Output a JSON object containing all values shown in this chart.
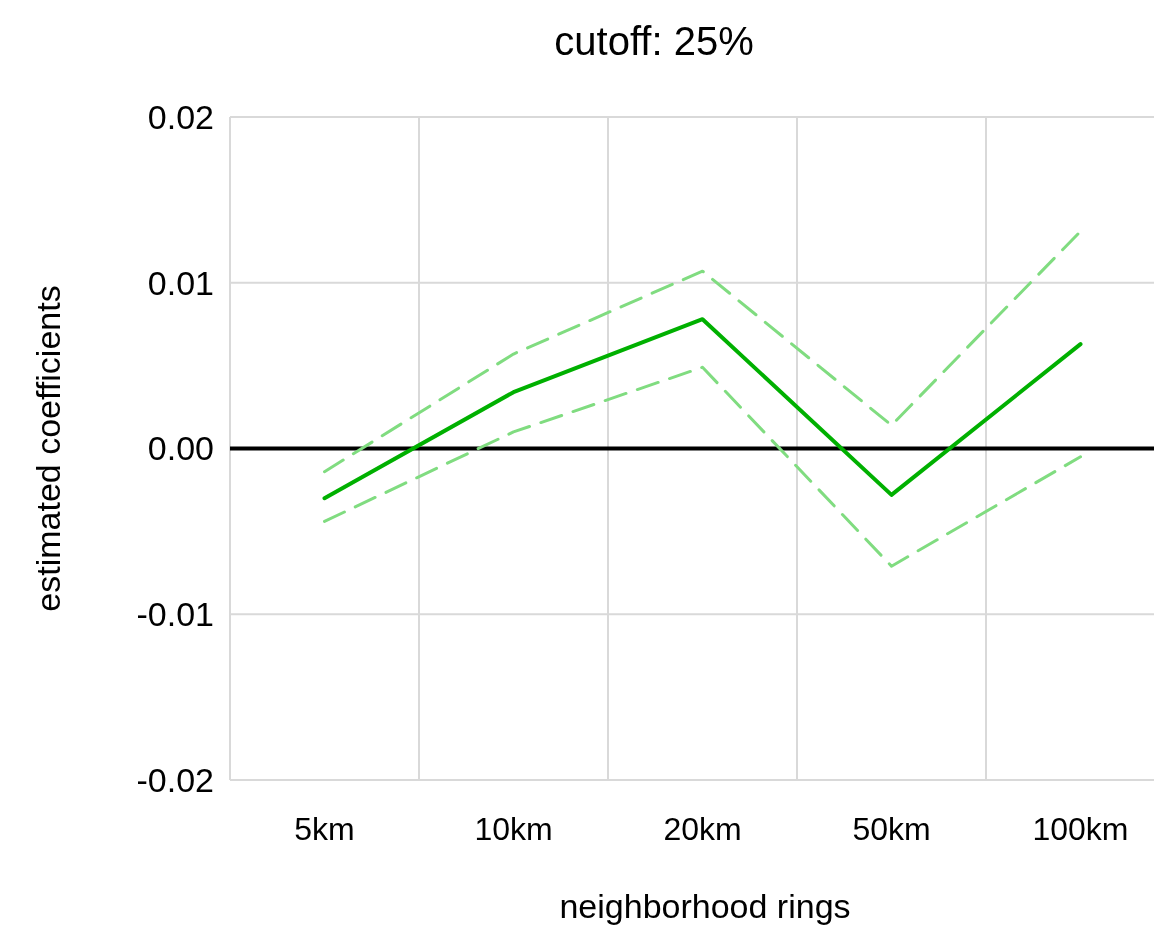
{
  "chart_data": {
    "type": "line",
    "title": "cutoff: 25%",
    "xlabel": "neighborhood rings",
    "ylabel": "estimated coefficients",
    "categories": [
      "5km",
      "10km",
      "20km",
      "50km",
      "100km"
    ],
    "series": [
      {
        "color": "#00b000",
        "line_style": "solid",
        "values": [
          -0.003,
          0.0034,
          0.0078,
          -0.0028,
          0.0063
        ]
      },
      {
        "color": "#80dc80",
        "line_style": "dashed",
        "values": [
          -0.0014,
          0.0057,
          0.0107,
          0.0014,
          0.0131
        ]
      },
      {
        "color": "#80dc80",
        "line_style": "dashed",
        "values": [
          -0.0044,
          0.001,
          0.0049,
          -0.0071,
          -0.0005
        ]
      }
    ],
    "ylim": [
      -0.02,
      0.02
    ],
    "yticks": [
      {
        "value": -0.02,
        "label": "-0.02"
      },
      {
        "value": -0.01,
        "label": "-0.01"
      },
      {
        "value": 0,
        "label": "0.00"
      },
      {
        "value": 0.01,
        "label": "0.01"
      },
      {
        "value": 0.02,
        "label": "0.02"
      }
    ],
    "ref_lines": [
      {
        "axis": "y",
        "value": 0,
        "color": "#000000"
      }
    ],
    "grid": true
  }
}
